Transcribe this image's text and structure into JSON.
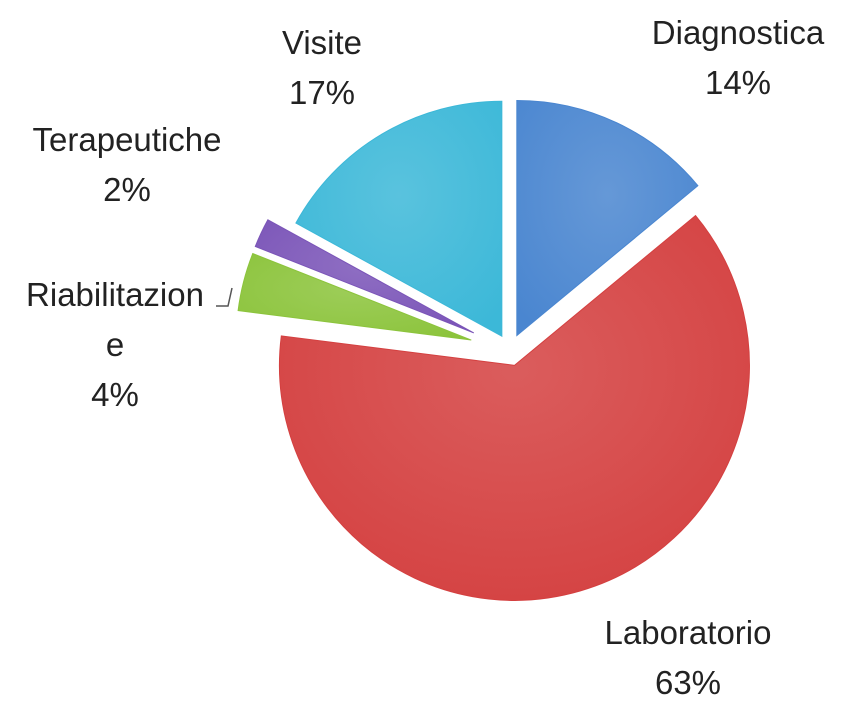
{
  "chart_data": {
    "type": "pie",
    "categories": [
      "Diagnostica",
      "Laboratorio",
      "Riabilitazione",
      "Terapeutiche",
      "Visite"
    ],
    "values": [
      14,
      63,
      4,
      2,
      17
    ],
    "value_labels": [
      "14%",
      "63%",
      "4%",
      "2%",
      "17%"
    ],
    "colors": [
      "#4a86d0",
      "#d44040",
      "#8cc43c",
      "#7b55b8",
      "#3cb8d8"
    ]
  }
}
